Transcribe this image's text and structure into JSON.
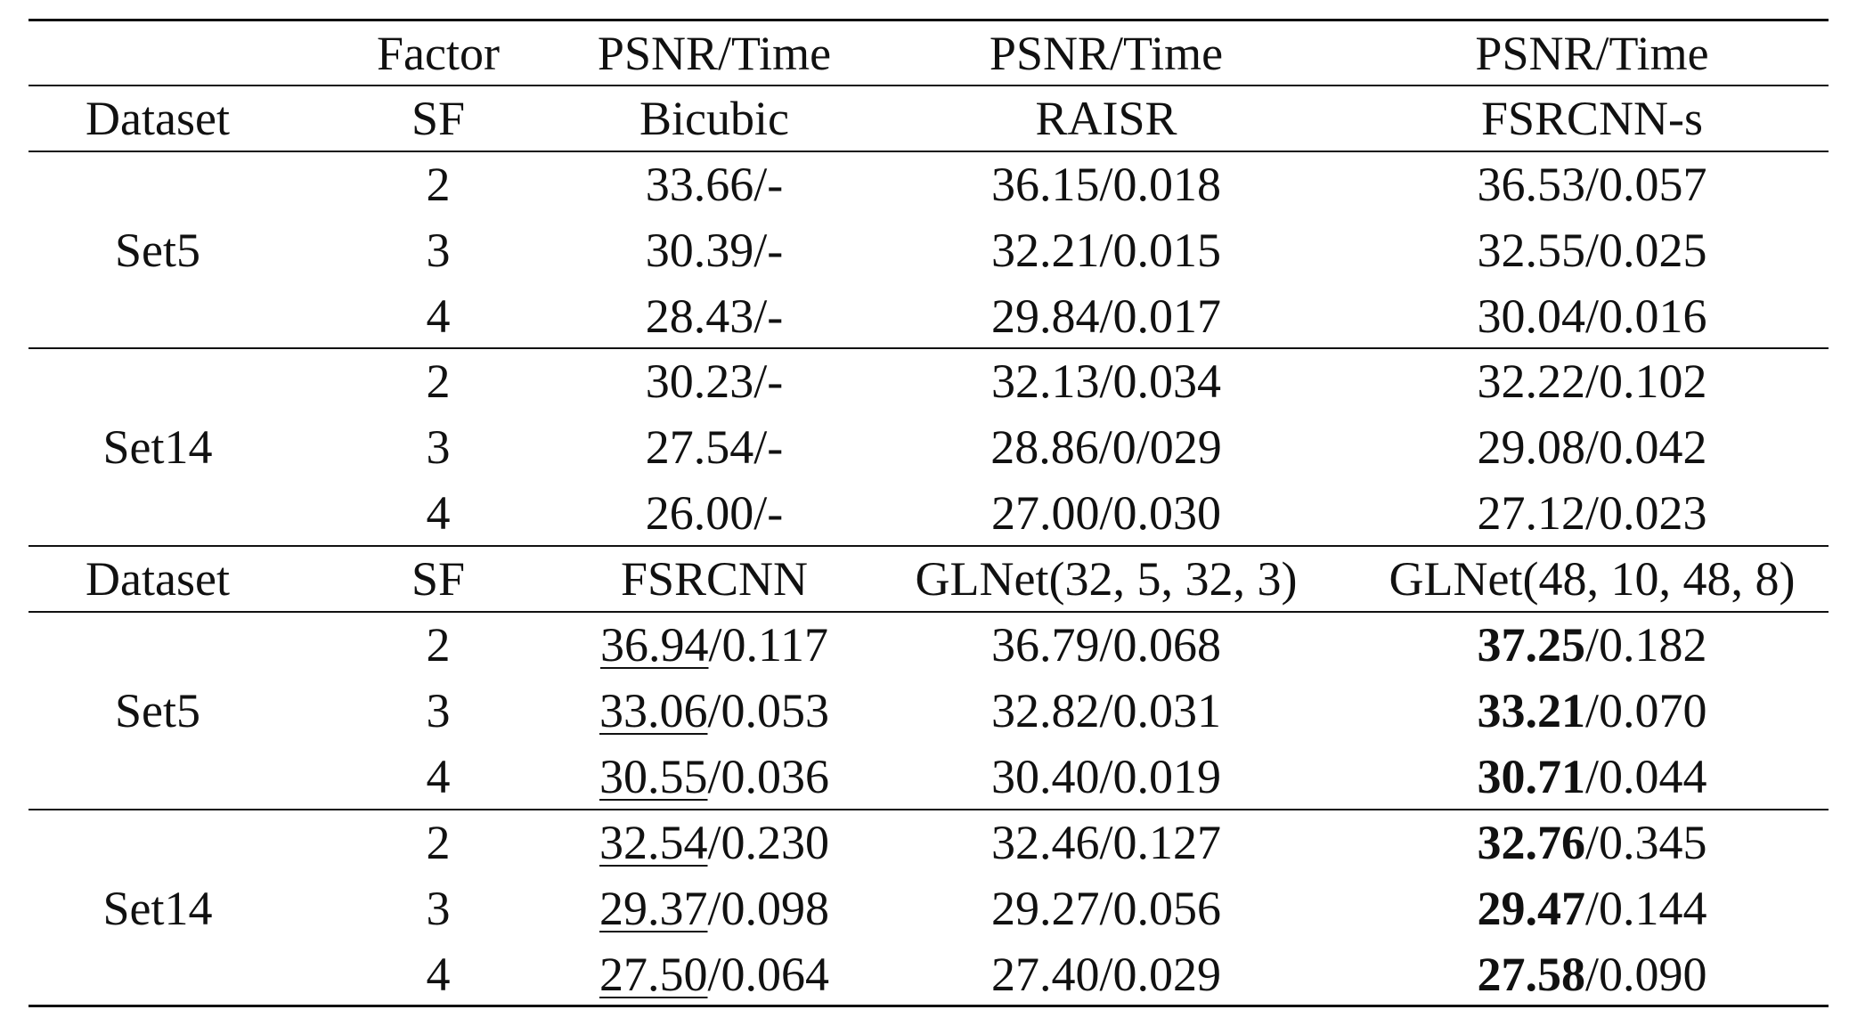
{
  "table": {
    "header": {
      "row1": [
        "",
        "Factor",
        "PSNR/Time",
        "PSNR/Time",
        "PSNR/Time"
      ],
      "row2": [
        "Dataset",
        "SF",
        "Bicubic",
        "RAISR",
        "FSRCNN-s"
      ]
    },
    "block1": [
      {
        "dataset": "Set5",
        "rows": [
          {
            "sf": "2",
            "c2": "33.66/-",
            "c3": "36.15/0.018",
            "c4": "36.53/0.057"
          },
          {
            "sf": "3",
            "c2": "30.39/-",
            "c3": "32.21/0.015",
            "c4": "32.55/0.025"
          },
          {
            "sf": "4",
            "c2": "28.43/-",
            "c3": "29.84/0.017",
            "c4": "30.04/0.016"
          }
        ]
      },
      {
        "dataset": "Set14",
        "rows": [
          {
            "sf": "2",
            "c2": "30.23/-",
            "c3": "32.13/0.034",
            "c4": "32.22/0.102"
          },
          {
            "sf": "3",
            "c2": "27.54/-",
            "c3": "28.86/0/029",
            "c4": "29.08/0.042"
          },
          {
            "sf": "4",
            "c2": "26.00/-",
            "c3": "27.00/0.030",
            "c4": "27.12/0.023"
          }
        ]
      }
    ],
    "header2": [
      "Dataset",
      "SF",
      "FSRCNN",
      "GLNet(32, 5, 32, 3)",
      "GLNet(48, 10, 48, 8)"
    ],
    "block2": [
      {
        "dataset": "Set5",
        "rows": [
          {
            "sf": "2",
            "c2_psnr": "36.94",
            "c2_time": "/0.117",
            "c3": "36.79/0.068",
            "c4_psnr": "37.25",
            "c4_time": "/0.182"
          },
          {
            "sf": "3",
            "c2_psnr": "33.06",
            "c2_time": "/0.053",
            "c3": "32.82/0.031",
            "c4_psnr": "33.21",
            "c4_time": "/0.070"
          },
          {
            "sf": "4",
            "c2_psnr": "30.55",
            "c2_time": "/0.036",
            "c3": "30.40/0.019",
            "c4_psnr": "30.71",
            "c4_time": "/0.044"
          }
        ]
      },
      {
        "dataset": "Set14",
        "rows": [
          {
            "sf": "2",
            "c2_psnr": "32.54",
            "c2_time": "/0.230",
            "c3": "32.46/0.127",
            "c4_psnr": "32.76",
            "c4_time": "/0.345"
          },
          {
            "sf": "3",
            "c2_psnr": "29.37",
            "c2_time": "/0.098",
            "c3": "29.27/0.056",
            "c4_psnr": "29.47",
            "c4_time": "/0.144"
          },
          {
            "sf": "4",
            "c2_psnr": "27.50",
            "c2_time": "/0.064",
            "c3": "27.40/0.029",
            "c4_psnr": "27.58",
            "c4_time": "/0.090"
          }
        ]
      }
    ]
  }
}
